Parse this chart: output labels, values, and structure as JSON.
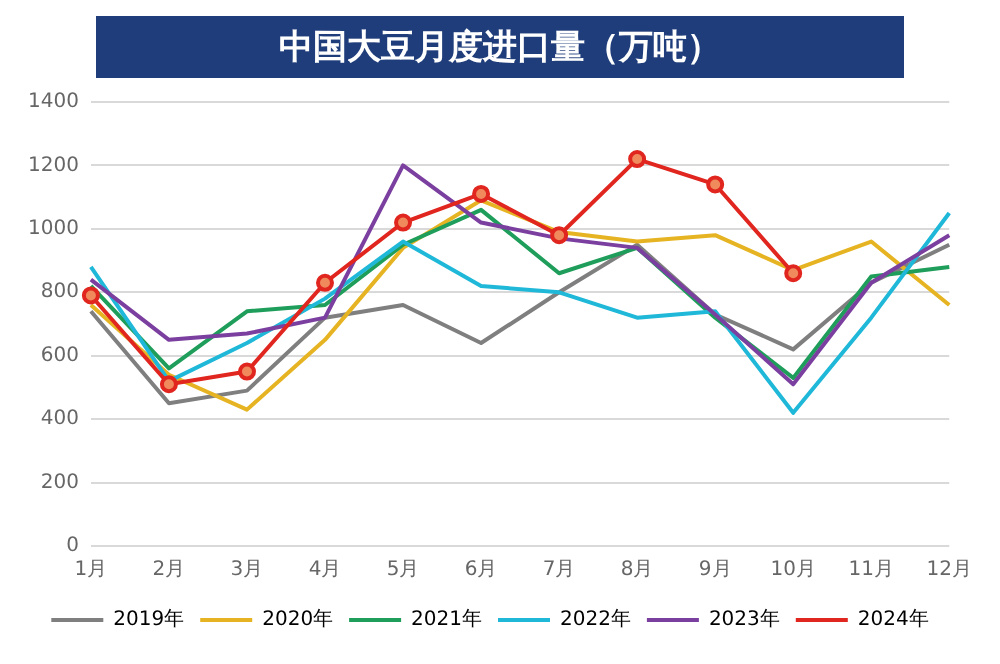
{
  "chart_data": {
    "type": "line",
    "title": "中国大豆月度进口量（万吨）",
    "categories": [
      "1月",
      "2月",
      "3月",
      "4月",
      "5月",
      "6月",
      "7月",
      "8月",
      "9月",
      "10月",
      "11月",
      "12月"
    ],
    "series": [
      {
        "name": "2019年",
        "color": "#7f7f7f",
        "values": [
          740,
          450,
          490,
          720,
          760,
          640,
          800,
          950,
          730,
          620,
          830,
          950
        ]
      },
      {
        "name": "2020年",
        "color": "#e6b422",
        "values": [
          760,
          540,
          430,
          650,
          940,
          1090,
          990,
          960,
          980,
          870,
          960,
          760
        ]
      },
      {
        "name": "2021年",
        "color": "#1e9e5a",
        "values": [
          820,
          560,
          740,
          760,
          950,
          1060,
          860,
          940,
          720,
          530,
          850,
          880
        ]
      },
      {
        "name": "2022年",
        "color": "#1fb8d8",
        "values": [
          880,
          520,
          640,
          780,
          960,
          820,
          800,
          720,
          740,
          420,
          720,
          1050
        ]
      },
      {
        "name": "2023年",
        "color": "#7b3fa0",
        "values": [
          840,
          650,
          670,
          720,
          1200,
          1020,
          970,
          940,
          730,
          510,
          830,
          980
        ]
      },
      {
        "name": "2024年",
        "color": "#e0261e",
        "marker": "circle",
        "values": [
          790,
          510,
          550,
          830,
          1020,
          1110,
          980,
          1220,
          1140,
          860,
          null,
          null
        ]
      }
    ],
    "ylim": [
      0,
      1400
    ],
    "yticks": [
      0,
      200,
      400,
      600,
      800,
      1000,
      1200,
      1400
    ],
    "grid": "y",
    "legend": "bottom"
  }
}
